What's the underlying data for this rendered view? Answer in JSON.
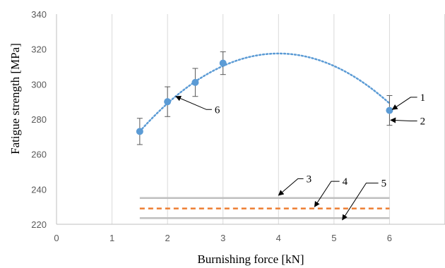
{
  "chart_data": {
    "type": "scatter",
    "xlabel": "Burnishing force [kN]",
    "ylabel": "Fatigue strength [MPa]",
    "xlim": [
      0,
      7
    ],
    "ylim": [
      220,
      340
    ],
    "x_ticks": [
      0,
      1,
      2,
      3,
      4,
      5,
      6
    ],
    "y_ticks": [
      220,
      240,
      260,
      280,
      300,
      320,
      340
    ],
    "grid": "vertical",
    "points": [
      {
        "x": 1.5,
        "y": 273,
        "err": 7.5
      },
      {
        "x": 2.0,
        "y": 290,
        "err": 8.5
      },
      {
        "x": 2.5,
        "y": 301,
        "err": 8.0
      },
      {
        "x": 3.0,
        "y": 312,
        "err": 6.5
      },
      {
        "x": 6.0,
        "y": 285,
        "err": 8.5
      }
    ],
    "trendline": {
      "type": "polynomial-2",
      "peak_x": 4.0,
      "peak_y": 317.5,
      "x_range": [
        1.5,
        6.0
      ]
    },
    "reference_lines": [
      {
        "id": "3",
        "y": 235,
        "x_range": [
          1.5,
          6.0
        ],
        "style": "solid",
        "color": "#bfbfbf"
      },
      {
        "id": "4",
        "y": 229,
        "x_range": [
          1.5,
          6.0
        ],
        "style": "dashed",
        "color": "#ed7d31"
      },
      {
        "id": "5",
        "y": 223.5,
        "x_range": [
          1.5,
          6.0
        ],
        "style": "solid",
        "color": "#bfbfbf"
      }
    ],
    "annotations": [
      {
        "label": "1",
        "text_x": 6.55,
        "text_y": 290.5,
        "target_x": 6.05,
        "target_y": 285.5,
        "elbow_x": 6.38
      },
      {
        "label": "2",
        "text_x": 6.55,
        "text_y": 277,
        "target_x": 6.02,
        "target_y": 279.5,
        "elbow_x": 6.38
      },
      {
        "label": "3",
        "text_x": 4.5,
        "text_y": 244,
        "target_x": 4.0,
        "target_y": 236.5,
        "elbow_x": 4.35
      },
      {
        "label": "4",
        "text_x": 5.15,
        "text_y": 242.5,
        "target_x": 4.65,
        "target_y": 230,
        "elbow_x": 4.95
      },
      {
        "label": "5",
        "text_x": 5.85,
        "text_y": 241.5,
        "target_x": 5.15,
        "target_y": 222.5,
        "elbow_x": 5.58
      },
      {
        "label": "6",
        "text_x": 2.85,
        "text_y": 283.5,
        "target_x": 2.15,
        "target_y": 293,
        "elbow_x": 2.7
      }
    ],
    "colors": {
      "point": "#5b9bd5",
      "trend": "#5b9bd5",
      "error_bar": "#595959",
      "grid": "#d9d9d9",
      "axis": "#bfbfbf"
    }
  }
}
